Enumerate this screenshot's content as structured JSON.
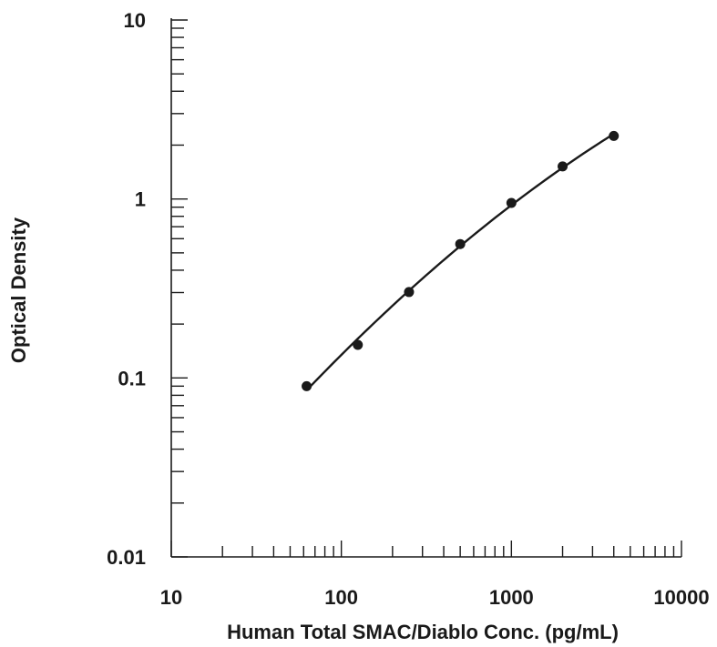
{
  "chart_data": {
    "type": "scatter",
    "title": "",
    "xlabel": "Human Total SMAC/Diablo Conc. (pg/mL)",
    "ylabel": "Optical Density",
    "xscale": "log",
    "yscale": "log",
    "xlim": [
      10,
      10000
    ],
    "ylim": [
      0.01,
      10
    ],
    "grid": false,
    "x_ticks": [
      10,
      100,
      1000,
      10000
    ],
    "x_tick_labels": [
      "10",
      "100",
      "1000",
      "10000"
    ],
    "y_ticks": [
      0.01,
      0.1,
      1,
      10
    ],
    "y_tick_labels": [
      "0.01",
      "0.1",
      "1",
      "10"
    ],
    "fit_curve": true,
    "series": [
      {
        "x": [
          62.5,
          125,
          250,
          500,
          1000,
          2000,
          4000
        ],
        "y": [
          0.09,
          0.153,
          0.302,
          0.56,
          0.95,
          1.52,
          2.25
        ]
      }
    ],
    "colors": {
      "ink": "#1a1a1a",
      "background": "#ffffff"
    }
  }
}
